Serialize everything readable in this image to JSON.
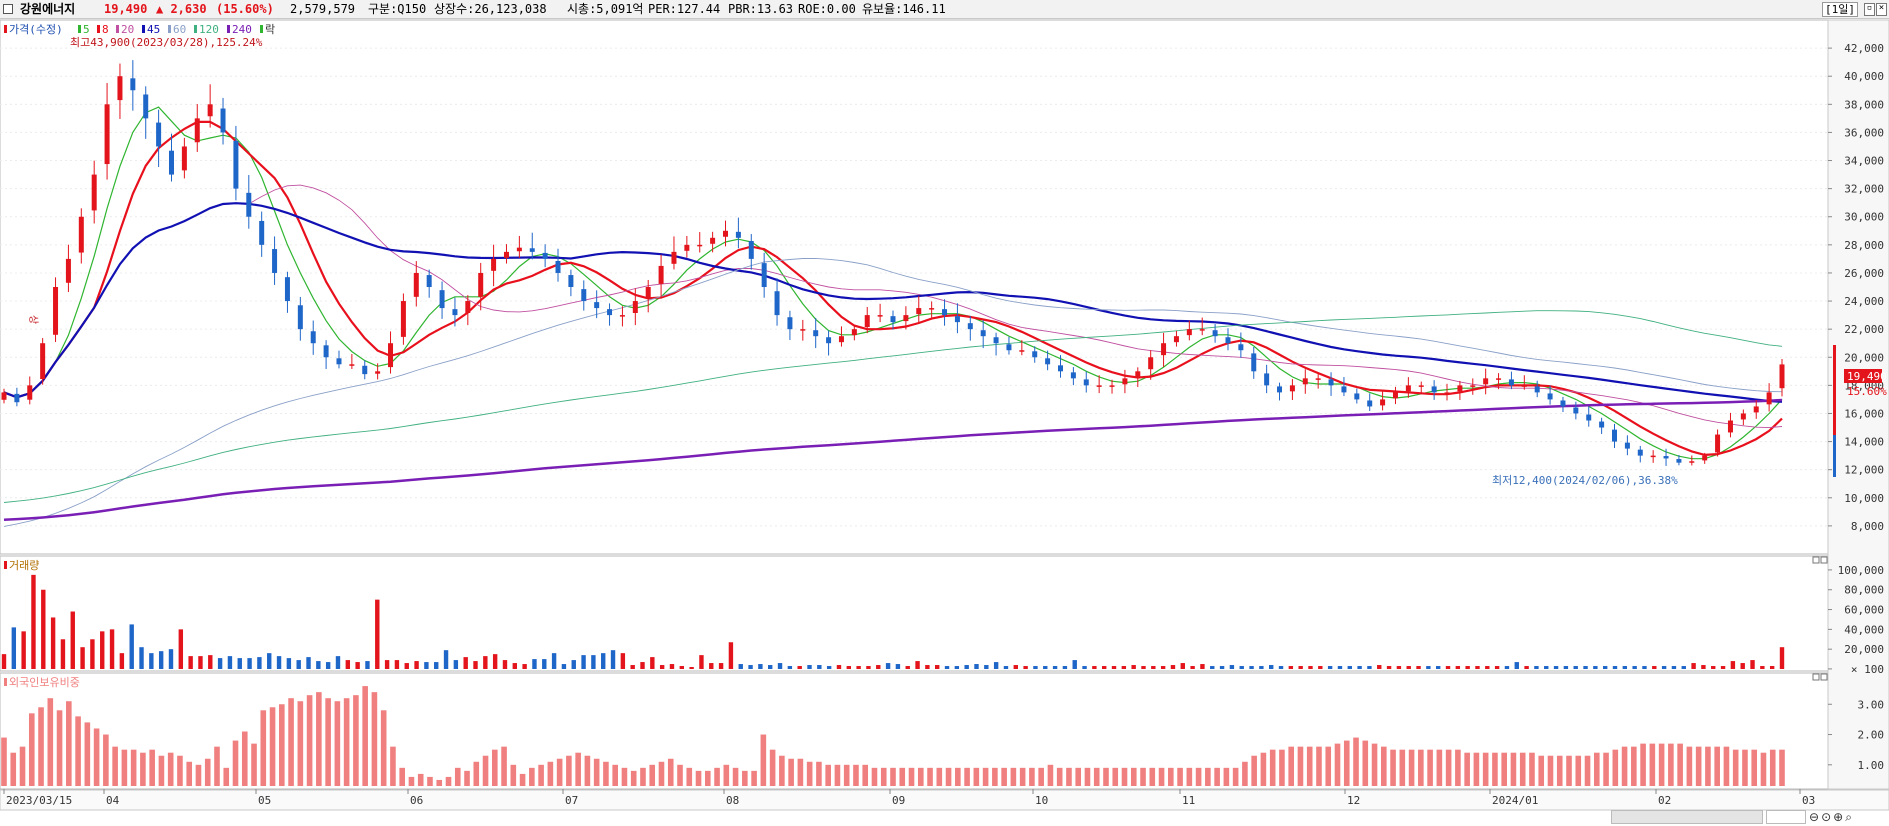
{
  "header": {
    "name": "강원에너지",
    "price": "19,490",
    "change": "▲ 2,630",
    "change_pct": "(15.60%)",
    "volume": "2,579,579",
    "section": "구분:Q150",
    "listed": "상장수:26,123,038",
    "mktcap": "시총:5,091억",
    "per": "PER:127.44",
    "pbr": "PBR:13.63",
    "roe": "ROE:0.00",
    "float_ratio": "유보율:146.11",
    "period": "1일"
  },
  "legend": {
    "price_label": "가격(수정)",
    "ma": [
      {
        "label": "5",
        "color": "#2fb52f"
      },
      {
        "label": "8",
        "color": "#e8101c"
      },
      {
        "label": "20",
        "color": "#c050a0"
      },
      {
        "label": "45",
        "color": "#1111b3"
      },
      {
        "label": "60",
        "color": "#8aa0c8"
      },
      {
        "label": "120",
        "color": "#40b080"
      },
      {
        "label": "240",
        "color": "#7a1fb5"
      }
    ],
    "fall_label": "락",
    "volume_label": "거래량",
    "foreign_label": "외국인보유비중"
  },
  "annotations": {
    "high": "최고43,900(2023/03/28),125.24%",
    "low": "최저12,400(2024/02/06),36.38%",
    "last_price": "19,490",
    "last_pct": "15.60%",
    "side_mark": "상"
  },
  "colors": {
    "up": "#e3141b",
    "down": "#1f66c9",
    "foreign_bar": "#f08080",
    "grid": "#e6e6e6"
  },
  "chart_data": [
    {
      "type": "candlestick",
      "title": "가격(수정)",
      "yticks": [
        8000,
        10000,
        12000,
        14000,
        16000,
        18000,
        20000,
        22000,
        24000,
        26000,
        28000,
        30000,
        32000,
        34000,
        36000,
        38000,
        40000,
        42000
      ],
      "ytick_labels": [
        "8,000",
        "10,000",
        "12,000",
        "14,000",
        "16,000",
        "18,000",
        "20,000",
        "22,000",
        "24,000",
        "26,000",
        "28,000",
        "30,000",
        "32,000",
        "34,000",
        "36,000",
        "38,000",
        "40,000",
        "42,000"
      ],
      "ylim": [
        6000,
        44000
      ],
      "x_labels": [
        "2023/03/15",
        "04",
        "05",
        "06",
        "07",
        "08",
        "09",
        "10",
        "11",
        "12",
        "2024/01",
        "02",
        "03"
      ],
      "close_approx": [
        17500,
        16800,
        18000,
        21000,
        25000,
        27000,
        30000,
        33000,
        38000,
        40000,
        39000,
        37000,
        35000,
        33000,
        35000,
        37000,
        38000,
        36000,
        32000,
        30000,
        28000,
        26000,
        24000,
        22000,
        21000,
        20000,
        19500,
        19500,
        18800,
        19000,
        21000,
        24000,
        26000,
        25000,
        23500,
        23000,
        24000,
        26000,
        27000,
        27500,
        27800,
        27500,
        27000,
        26000,
        25000,
        24000,
        23500,
        23000,
        23000,
        24000,
        25000,
        26500,
        27500,
        28000,
        28000,
        28500,
        29000,
        28500,
        27000,
        25000,
        23000,
        22000,
        22000,
        21500,
        21000,
        21500,
        22000,
        23000,
        23000,
        22500,
        23000,
        23500,
        23500,
        23000,
        22500,
        22000,
        21500,
        21000,
        20500,
        20500,
        20000,
        19500,
        19000,
        18500,
        18000,
        18000,
        18000,
        18500,
        19000,
        20000,
        21000,
        21500,
        22000,
        22000,
        21500,
        21000,
        20500,
        19000,
        18000,
        17500,
        18000,
        18500,
        18500,
        18000,
        17500,
        17000,
        16500,
        17000,
        17500,
        18000,
        18000,
        17500,
        17500,
        18000,
        18000,
        18500,
        18500,
        18000,
        18000,
        17500,
        17000,
        16500,
        16000,
        15500,
        15000,
        14000,
        13500,
        13000,
        13000,
        12800,
        12500,
        12600,
        13000,
        14500,
        15500,
        16000,
        16500,
        17500,
        19490
      ]
    },
    {
      "type": "bar",
      "title": "거래량",
      "yticks": [
        100,
        20000,
        40000,
        60000,
        80000,
        100000
      ],
      "ytick_labels": [
        "× 100",
        "20,000",
        "40,000",
        "60,000",
        "80,000",
        "100,000"
      ],
      "ylim": [
        0,
        110000
      ],
      "values_approx": [
        15000,
        42000,
        38000,
        95000,
        80000,
        52000,
        30000,
        58000,
        22000,
        30000,
        38000,
        40000,
        16000,
        45000,
        22000,
        16000,
        18000,
        20000,
        40000,
        13000,
        13000,
        14000,
        11000,
        13000,
        11000,
        11000,
        12000,
        16000,
        13000,
        11000,
        9000,
        12000,
        8000,
        7000,
        13000,
        9000,
        7000,
        8000,
        70000,
        9000,
        9000,
        6000,
        8000,
        7000,
        7000,
        19000,
        9000,
        12000,
        8000,
        13000,
        15000,
        9000,
        6000,
        5000,
        10000,
        10000,
        16000,
        5000,
        9000,
        14000,
        14000,
        16000,
        19000,
        16000,
        4000,
        7000,
        12000,
        4000,
        5000,
        3000,
        2000,
        14000,
        6000,
        6000,
        27000,
        5000,
        4000,
        5000,
        4000,
        6000,
        3000,
        3000,
        4000,
        4000,
        3000,
        4000,
        3000,
        3000,
        3000,
        4000,
        6000,
        5000,
        3000,
        8000,
        4000,
        4000,
        3000,
        3000,
        4000,
        5000,
        4000,
        7000,
        3000,
        4000,
        3000,
        3000,
        3000,
        3000,
        3000,
        9000,
        3000,
        3000,
        3000,
        3000,
        3000,
        4000,
        3000,
        3000,
        3000,
        4000,
        6000,
        3000,
        5000,
        3000,
        3000,
        4000,
        3000,
        3000,
        3000,
        4000,
        3000,
        3000,
        3000,
        3000,
        3000,
        3000,
        3000,
        3000,
        3000,
        3000,
        4000,
        3000,
        3000,
        3000,
        3000,
        3000,
        3000,
        3000,
        3000,
        3000,
        3000,
        3000,
        3000,
        3000,
        7000,
        3000,
        3000,
        3000,
        3000,
        3000,
        3000,
        3000,
        3000,
        3000,
        3000,
        3000,
        3000,
        3000,
        3000,
        3000,
        3000,
        3000,
        6000,
        4000,
        3000,
        3000,
        8000,
        6000,
        9000,
        3000,
        3000,
        22000
      ]
    },
    {
      "type": "bar",
      "title": "외국인보유비중",
      "yticks": [
        1.0,
        2.0,
        3.0
      ],
      "ytick_labels": [
        "1.00",
        "2.00",
        "3.00"
      ],
      "ylim": [
        0.3,
        3.9
      ],
      "values_approx": [
        1.9,
        1.4,
        1.6,
        2.7,
        2.9,
        3.2,
        2.8,
        3.1,
        2.6,
        2.4,
        2.2,
        2.0,
        1.6,
        1.5,
        1.5,
        1.4,
        1.5,
        1.3,
        1.4,
        1.3,
        1.1,
        1.0,
        1.2,
        1.6,
        0.9,
        1.8,
        2.1,
        1.7,
        2.8,
        2.9,
        3.0,
        3.2,
        3.1,
        3.3,
        3.4,
        3.2,
        3.1,
        3.2,
        3.3,
        3.6,
        3.4,
        2.8,
        1.6,
        0.9,
        0.6,
        0.7,
        0.6,
        0.5,
        0.6,
        0.9,
        0.8,
        1.1,
        1.3,
        1.5,
        1.6,
        1.0,
        0.7,
        0.9,
        1.0,
        1.1,
        1.2,
        1.3,
        1.4,
        1.3,
        1.2,
        1.1,
        1.0,
        0.9,
        0.8,
        0.9,
        1.0,
        1.1,
        1.2,
        1.0,
        0.9,
        0.8,
        0.8,
        0.9,
        1.0,
        0.9,
        0.8,
        0.8,
        2.0,
        1.5,
        1.3,
        1.2,
        1.2,
        1.1,
        1.1,
        1.0,
        1.0,
        1.0,
        1.0,
        1.0,
        0.9,
        0.9,
        0.9,
        0.9,
        0.9,
        0.9,
        0.9,
        0.9,
        0.9,
        0.9,
        0.9,
        0.9,
        0.9,
        0.9,
        0.9,
        0.9,
        0.9,
        0.9,
        0.9,
        1.0,
        0.9,
        0.9,
        0.9,
        0.9,
        0.9,
        0.9,
        0.9,
        0.9,
        0.9,
        0.9,
        0.9,
        0.9,
        0.9,
        0.9,
        0.9,
        0.9,
        0.9,
        0.9,
        0.9,
        0.9,
        1.1,
        1.3,
        1.4,
        1.5,
        1.5,
        1.6,
        1.6,
        1.6,
        1.6,
        1.6,
        1.7,
        1.8,
        1.9,
        1.8,
        1.7,
        1.6,
        1.5,
        1.5,
        1.5,
        1.5,
        1.5,
        1.5,
        1.5,
        1.5,
        1.4,
        1.4,
        1.4,
        1.4,
        1.4,
        1.4,
        1.4,
        1.4,
        1.3,
        1.3,
        1.3,
        1.3,
        1.3,
        1.3,
        1.4,
        1.4,
        1.5,
        1.6,
        1.6,
        1.7,
        1.7,
        1.7,
        1.7,
        1.7,
        1.6,
        1.6,
        1.6,
        1.6,
        1.6,
        1.5,
        1.5,
        1.5,
        1.4,
        1.5,
        1.5
      ]
    }
  ]
}
